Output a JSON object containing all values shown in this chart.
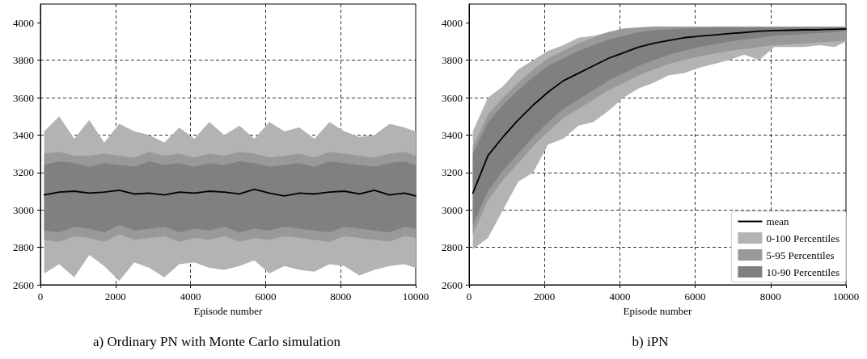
{
  "chart_data": [
    {
      "type": "line",
      "title": "a) Ordinary PN with Monte Carlo simulation",
      "xlabel": "Episode number",
      "xlim": [
        0,
        10000
      ],
      "xticks": [
        0,
        2000,
        4000,
        6000,
        8000,
        10000
      ],
      "ylim": [
        2600,
        4100
      ],
      "yticks": [
        2600,
        2800,
        3000,
        3200,
        3400,
        3600,
        3800,
        4000
      ],
      "grid": true,
      "legend": false,
      "line_style": "solid",
      "marker": "none",
      "x": [
        100,
        500,
        900,
        1300,
        1700,
        2100,
        2500,
        2900,
        3300,
        3700,
        4100,
        4500,
        4900,
        5300,
        5700,
        6100,
        6500,
        6900,
        7300,
        7700,
        8100,
        8500,
        8900,
        9300,
        9700,
        10000
      ],
      "series": [
        {
          "type": "area",
          "color": "#b3b3b3",
          "lower": [
            2660,
            2710,
            2640,
            2760,
            2700,
            2620,
            2720,
            2690,
            2640,
            2710,
            2720,
            2690,
            2680,
            2700,
            2730,
            2660,
            2700,
            2680,
            2670,
            2710,
            2700,
            2650,
            2680,
            2700,
            2710,
            2690
          ],
          "upper": [
            3420,
            3500,
            3380,
            3480,
            3360,
            3460,
            3420,
            3400,
            3360,
            3440,
            3380,
            3470,
            3400,
            3450,
            3380,
            3470,
            3420,
            3440,
            3380,
            3470,
            3420,
            3390,
            3400,
            3460,
            3440,
            3420
          ],
          "values": [
            null,
            null,
            null,
            null,
            null,
            null,
            null,
            null,
            null,
            null,
            null,
            null,
            null,
            null,
            null,
            null,
            null,
            null,
            null,
            null,
            null,
            null,
            null,
            null,
            null,
            null
          ]
        },
        {
          "type": "area",
          "color": "#999999",
          "lower": [
            2840,
            2830,
            2860,
            2850,
            2830,
            2870,
            2840,
            2850,
            2860,
            2830,
            2850,
            2840,
            2860,
            2830,
            2850,
            2840,
            2860,
            2850,
            2840,
            2830,
            2860,
            2850,
            2840,
            2830,
            2860,
            2850
          ],
          "upper": [
            3300,
            3310,
            3290,
            3290,
            3300,
            3290,
            3280,
            3310,
            3290,
            3300,
            3280,
            3300,
            3290,
            3310,
            3300,
            3280,
            3290,
            3300,
            3280,
            3310,
            3300,
            3290,
            3280,
            3300,
            3310,
            3290
          ],
          "values": [
            null,
            null,
            null,
            null,
            null,
            null,
            null,
            null,
            null,
            null,
            null,
            null,
            null,
            null,
            null,
            null,
            null,
            null,
            null,
            null,
            null,
            null,
            null,
            null,
            null,
            null
          ]
        },
        {
          "type": "area",
          "color": "#808080",
          "lower": [
            2890,
            2880,
            2910,
            2900,
            2880,
            2920,
            2890,
            2900,
            2910,
            2880,
            2900,
            2890,
            2910,
            2880,
            2900,
            2890,
            2910,
            2900,
            2890,
            2880,
            2910,
            2900,
            2890,
            2880,
            2910,
            2900
          ],
          "upper": [
            3240,
            3260,
            3250,
            3230,
            3250,
            3240,
            3230,
            3260,
            3240,
            3250,
            3230,
            3250,
            3240,
            3260,
            3250,
            3230,
            3240,
            3250,
            3230,
            3260,
            3250,
            3240,
            3230,
            3250,
            3260,
            3240
          ],
          "values": [
            null,
            null,
            null,
            null,
            null,
            null,
            null,
            null,
            null,
            null,
            null,
            null,
            null,
            null,
            null,
            null,
            null,
            null,
            null,
            null,
            null,
            null,
            null,
            null,
            null,
            null
          ]
        },
        {
          "type": "line",
          "color": "#000000",
          "values": [
            3080,
            3095,
            3100,
            3090,
            3095,
            3105,
            3085,
            3090,
            3080,
            3095,
            3090,
            3100,
            3095,
            3085,
            3110,
            3090,
            3075,
            3090,
            3085,
            3095,
            3100,
            3085,
            3105,
            3080,
            3090,
            3075
          ]
        }
      ]
    },
    {
      "type": "line",
      "title": "b) iPN",
      "xlabel": "Episode number",
      "xlim": [
        0,
        10000
      ],
      "xticks": [
        0,
        2000,
        4000,
        6000,
        8000,
        10000
      ],
      "ylim": [
        2600,
        4100
      ],
      "yticks": [
        2600,
        2800,
        3000,
        3200,
        3400,
        3600,
        3800,
        4000
      ],
      "grid": true,
      "legend": "bottom right",
      "line_style": "solid",
      "marker": "none",
      "x": [
        100,
        500,
        900,
        1300,
        1700,
        2100,
        2500,
        2900,
        3300,
        3700,
        4100,
        4500,
        4900,
        5300,
        5700,
        6100,
        6500,
        6900,
        7300,
        7700,
        8100,
        8500,
        8900,
        9300,
        9700,
        10000
      ],
      "series": [
        {
          "type": "line",
          "name": "mean",
          "color": "#000000",
          "values": [
            3090,
            3290,
            3390,
            3480,
            3560,
            3630,
            3690,
            3730,
            3770,
            3810,
            3840,
            3870,
            3890,
            3905,
            3920,
            3928,
            3935,
            3942,
            3948,
            3955,
            3958,
            3960,
            3962,
            3963,
            3965,
            3967
          ]
        },
        {
          "type": "area",
          "name": "0-100 Percentiles",
          "color": "#b3b3b3",
          "lower": [
            2790,
            2850,
            3000,
            3150,
            3200,
            3350,
            3380,
            3450,
            3470,
            3530,
            3600,
            3650,
            3680,
            3720,
            3730,
            3760,
            3780,
            3800,
            3830,
            3800,
            3870,
            3870,
            3870,
            3880,
            3870,
            3900
          ],
          "upper": [
            3420,
            3600,
            3660,
            3750,
            3800,
            3850,
            3880,
            3920,
            3930,
            3950,
            3965,
            3975,
            3980,
            3980,
            3980,
            3980,
            3980,
            3980,
            3980,
            3980,
            3980,
            3980,
            3980,
            3980,
            3980,
            3980
          ],
          "values": [
            null,
            null,
            null,
            null,
            null,
            null,
            null,
            null,
            null,
            null,
            null,
            null,
            null,
            null,
            null,
            null,
            null,
            null,
            null,
            null,
            null,
            null,
            null,
            null,
            null,
            null
          ]
        },
        {
          "type": "area",
          "name": "5-95 Percentiles",
          "color": "#999999",
          "lower": [
            2870,
            3050,
            3160,
            3250,
            3340,
            3420,
            3490,
            3540,
            3590,
            3640,
            3680,
            3720,
            3750,
            3780,
            3800,
            3820,
            3835,
            3850,
            3860,
            3870,
            3880,
            3885,
            3890,
            3895,
            3900,
            3905
          ],
          "upper": [
            3340,
            3510,
            3600,
            3680,
            3750,
            3810,
            3850,
            3890,
            3920,
            3950,
            3970,
            3975,
            3978,
            3978,
            3978,
            3978,
            3978,
            3978,
            3978,
            3978,
            3978,
            3978,
            3978,
            3978,
            3978,
            3978
          ],
          "values": [
            null,
            null,
            null,
            null,
            null,
            null,
            null,
            null,
            null,
            null,
            null,
            null,
            null,
            null,
            null,
            null,
            null,
            null,
            null,
            null,
            null,
            null,
            null,
            null,
            null,
            null
          ]
        },
        {
          "type": "area",
          "name": "10-90 Percentiles",
          "color": "#808080",
          "lower": [
            2920,
            3100,
            3210,
            3300,
            3390,
            3470,
            3540,
            3590,
            3640,
            3690,
            3730,
            3770,
            3800,
            3830,
            3850,
            3870,
            3885,
            3900,
            3910,
            3920,
            3930,
            3935,
            3940,
            3945,
            3950,
            3955
          ],
          "upper": [
            3300,
            3470,
            3560,
            3640,
            3710,
            3770,
            3810,
            3850,
            3880,
            3910,
            3930,
            3950,
            3960,
            3965,
            3970,
            3972,
            3975,
            3975,
            3975,
            3975,
            3975,
            3975,
            3975,
            3975,
            3975,
            3975
          ],
          "values": [
            null,
            null,
            null,
            null,
            null,
            null,
            null,
            null,
            null,
            null,
            null,
            null,
            null,
            null,
            null,
            null,
            null,
            null,
            null,
            null,
            null,
            null,
            null,
            null,
            null,
            null
          ]
        }
      ]
    }
  ]
}
